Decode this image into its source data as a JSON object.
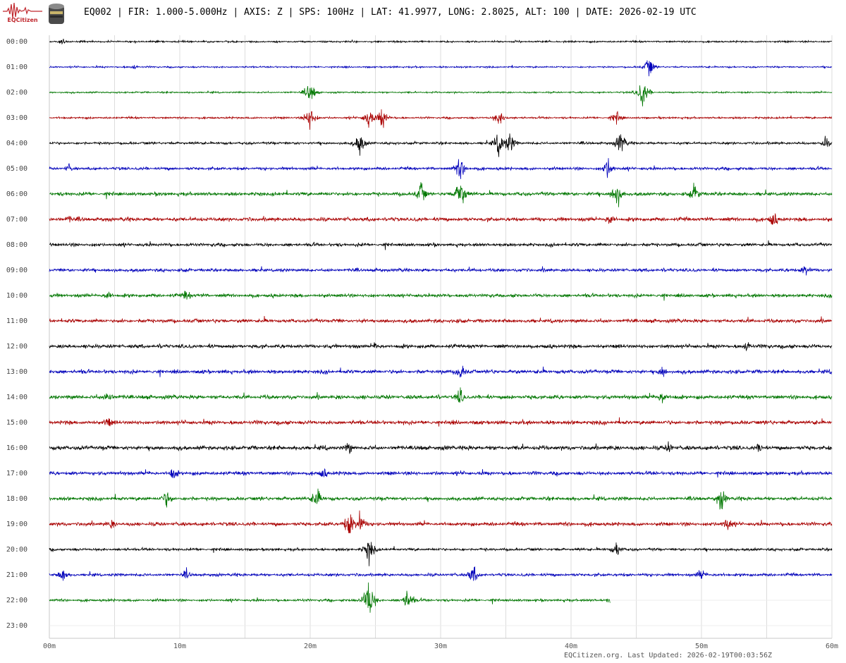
{
  "header": {
    "logo_text": "EQCitizen",
    "title": "EQ002 | FIR: 1.000-5.000Hz | AXIS: Z | SPS: 100Hz | LAT: 41.9977, LONG: 2.8025, ALT: 100 | DATE: 2026-02-19 UTC"
  },
  "footer": {
    "text": "EQCitizen.org. Last Updated: 2026-02-19T00:03:56Z"
  },
  "chart_data": {
    "type": "line",
    "subtype": "helicorder",
    "title": "EQ002 | FIR: 1.000-5.000Hz | AXIS: Z | SPS: 100Hz | LAT: 41.9977, LONG: 2.8025, ALT: 100 | DATE: 2026-02-19 UTC",
    "row_labels": [
      "00:00",
      "01:00",
      "02:00",
      "03:00",
      "04:00",
      "05:00",
      "06:00",
      "07:00",
      "08:00",
      "09:00",
      "10:00",
      "11:00",
      "12:00",
      "13:00",
      "14:00",
      "15:00",
      "16:00",
      "17:00",
      "18:00",
      "19:00",
      "20:00",
      "21:00",
      "22:00",
      "23:00"
    ],
    "x_ticks": [
      "00m",
      "10m",
      "20m",
      "30m",
      "40m",
      "50m",
      "60m"
    ],
    "xlim": [
      0,
      60
    ],
    "x_unit": "minutes",
    "row_colors": [
      "#000000",
      "#0000bb",
      "#007700",
      "#aa0000"
    ],
    "grid": true,
    "last_row_end_minute": 43,
    "noise_level": [
      0.5,
      0.45,
      0.45,
      0.55,
      0.7,
      0.8,
      1.0,
      1.05,
      0.9,
      0.9,
      0.95,
      1.0,
      1.05,
      1.05,
      1.1,
      1.1,
      1.15,
      1.0,
      1.0,
      1.0,
      0.75,
      0.8,
      0.7,
      0
    ],
    "events": [
      {
        "row": 0,
        "minute": 1.0,
        "amp": 7
      },
      {
        "row": 1,
        "minute": 6.5,
        "amp": 6
      },
      {
        "row": 1,
        "minute": 46.0,
        "amp": 22
      },
      {
        "row": 2,
        "minute": 20.0,
        "amp": 26
      },
      {
        "row": 2,
        "minute": 45.5,
        "amp": 34
      },
      {
        "row": 3,
        "minute": 20.0,
        "amp": 30
      },
      {
        "row": 3,
        "minute": 24.5,
        "amp": 26
      },
      {
        "row": 3,
        "minute": 25.5,
        "amp": 26
      },
      {
        "row": 3,
        "minute": 34.5,
        "amp": 20
      },
      {
        "row": 3,
        "minute": 43.5,
        "amp": 16
      },
      {
        "row": 4,
        "minute": 23.8,
        "amp": 28
      },
      {
        "row": 4,
        "minute": 34.5,
        "amp": 30
      },
      {
        "row": 4,
        "minute": 35.3,
        "amp": 26
      },
      {
        "row": 4,
        "minute": 43.8,
        "amp": 26
      },
      {
        "row": 4,
        "minute": 59.5,
        "amp": 14
      },
      {
        "row": 5,
        "minute": 1.5,
        "amp": 10
      },
      {
        "row": 5,
        "minute": 31.5,
        "amp": 28
      },
      {
        "row": 5,
        "minute": 42.8,
        "amp": 26
      },
      {
        "row": 6,
        "minute": 31.5,
        "amp": 40
      },
      {
        "row": 6,
        "minute": 28.5,
        "amp": 26
      },
      {
        "row": 6,
        "minute": 43.5,
        "amp": 34
      },
      {
        "row": 6,
        "minute": 49.5,
        "amp": 24
      },
      {
        "row": 7,
        "minute": 1.5,
        "amp": 10
      },
      {
        "row": 7,
        "minute": 55.5,
        "amp": 20
      },
      {
        "row": 7,
        "minute": 43.0,
        "amp": 18
      },
      {
        "row": 9,
        "minute": 58.0,
        "amp": 16
      },
      {
        "row": 10,
        "minute": 4.5,
        "amp": 14
      },
      {
        "row": 10,
        "minute": 10.5,
        "amp": 14
      },
      {
        "row": 12,
        "minute": 53.5,
        "amp": 14
      },
      {
        "row": 12,
        "minute": 25.0,
        "amp": 10
      },
      {
        "row": 13,
        "minute": 31.5,
        "amp": 22
      },
      {
        "row": 13,
        "minute": 47.0,
        "amp": 16
      },
      {
        "row": 14,
        "minute": 4.5,
        "amp": 18
      },
      {
        "row": 14,
        "minute": 31.5,
        "amp": 20
      },
      {
        "row": 14,
        "minute": 47.0,
        "amp": 18
      },
      {
        "row": 15,
        "minute": 4.5,
        "amp": 14
      },
      {
        "row": 16,
        "minute": 23.0,
        "amp": 16
      },
      {
        "row": 16,
        "minute": 47.5,
        "amp": 14
      },
      {
        "row": 16,
        "minute": 54.5,
        "amp": 14
      },
      {
        "row": 17,
        "minute": 9.5,
        "amp": 18
      },
      {
        "row": 17,
        "minute": 21.0,
        "amp": 14
      },
      {
        "row": 18,
        "minute": 9.0,
        "amp": 22
      },
      {
        "row": 18,
        "minute": 20.5,
        "amp": 26
      },
      {
        "row": 18,
        "minute": 51.5,
        "amp": 26
      },
      {
        "row": 19,
        "minute": 23.0,
        "amp": 34
      },
      {
        "row": 19,
        "minute": 23.8,
        "amp": 30
      },
      {
        "row": 19,
        "minute": 4.8,
        "amp": 12
      },
      {
        "row": 19,
        "minute": 52.0,
        "amp": 20
      },
      {
        "row": 20,
        "minute": 24.5,
        "amp": 30
      },
      {
        "row": 20,
        "minute": 43.5,
        "amp": 18
      },
      {
        "row": 21,
        "minute": 1.0,
        "amp": 18
      },
      {
        "row": 21,
        "minute": 10.5,
        "amp": 12
      },
      {
        "row": 21,
        "minute": 32.5,
        "amp": 22
      },
      {
        "row": 21,
        "minute": 50.0,
        "amp": 16
      },
      {
        "row": 22,
        "minute": 24.5,
        "amp": 48
      },
      {
        "row": 22,
        "minute": 27.5,
        "amp": 26
      },
      {
        "row": 22,
        "minute": 43.0,
        "amp": 8
      }
    ]
  }
}
